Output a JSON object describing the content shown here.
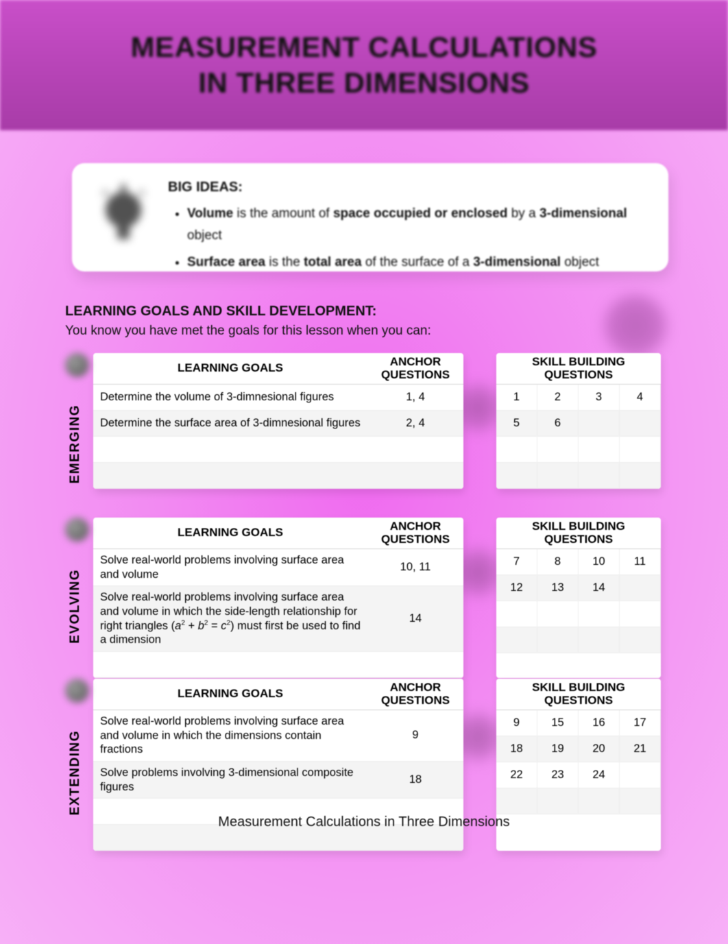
{
  "title_line1": "MEASUREMENT CALCULATIONS",
  "title_line2": "IN THREE DIMENSIONS",
  "big_ideas": {
    "heading": "BIG IDEAS:",
    "item1_prefix": "Volume",
    "item1_mid": " is the amount of ",
    "item1_bold2": "space occupied or enclosed",
    "item1_mid2": " by a ",
    "item1_bold3": "3-dimensional",
    "item1_end": " object",
    "item2_prefix": "Surface area",
    "item2_mid": " is the ",
    "item2_bold2": "total area",
    "item2_mid2": " of the surface of a ",
    "item2_bold3": "3-dimensional",
    "item2_end": " object"
  },
  "lg": {
    "heading": "LEARNING GOALS AND SKILL DEVELOPMENT:",
    "sub": "You know you have met the goals for this lesson when you can:"
  },
  "headers": {
    "goals": "LEARNING GOALS",
    "anchor": "ANCHOR QUESTIONS",
    "skill": "SKILL BUILDING QUESTIONS"
  },
  "sections": {
    "emerging": {
      "label": "EMERGING",
      "rows": [
        {
          "goal": "Determine the volume of 3-dimnesional figures",
          "anchor": "1, 4"
        },
        {
          "goal": "Determine the surface area of 3-dimnesional figures",
          "anchor": "2, 4"
        },
        {
          "goal": "",
          "anchor": ""
        },
        {
          "goal": "",
          "anchor": ""
        }
      ],
      "skill": [
        [
          "1",
          "2",
          "3",
          "4"
        ],
        [
          "5",
          "6",
          "",
          ""
        ],
        [
          "",
          "",
          "",
          ""
        ],
        [
          "",
          "",
          "",
          ""
        ]
      ]
    },
    "evolving": {
      "label": "EVOLVING",
      "rows": [
        {
          "goal": "Solve real-world problems involving surface area and volume",
          "anchor": "10, 11"
        },
        {
          "goal_html": "Solve real-world problems involving surface area and volume in which the side-length relationship for right triangles (<span class='formula'>a</span><sup>2</sup> + <span class='formula'>b</span><sup>2</sup> = <span class='formula'>c</span><sup>2</sup>) must first be used to find a dimension",
          "anchor": "14"
        },
        {
          "goal": "",
          "anchor": ""
        }
      ],
      "skill": [
        [
          "7",
          "8",
          "10",
          "11"
        ],
        [
          "12",
          "13",
          "14",
          ""
        ],
        [
          "",
          "",
          "",
          ""
        ],
        [
          "",
          "",
          "",
          ""
        ]
      ]
    },
    "extending": {
      "label": "EXTENDING",
      "rows": [
        {
          "goal": "Solve real-world problems involving surface area and volume in which the dimensions contain fractions",
          "anchor": "9"
        },
        {
          "goal": "Solve problems involving 3-dimensional composite figures",
          "anchor": "18"
        },
        {
          "goal": "",
          "anchor": ""
        },
        {
          "goal": "",
          "anchor": ""
        }
      ],
      "skill": [
        [
          "9",
          "15",
          "16",
          "17"
        ],
        [
          "18",
          "19",
          "20",
          "21"
        ],
        [
          "22",
          "23",
          "24",
          ""
        ],
        [
          "",
          "",
          "",
          ""
        ]
      ]
    }
  },
  "footer": "Measurement Calculations in Three Dimensions"
}
